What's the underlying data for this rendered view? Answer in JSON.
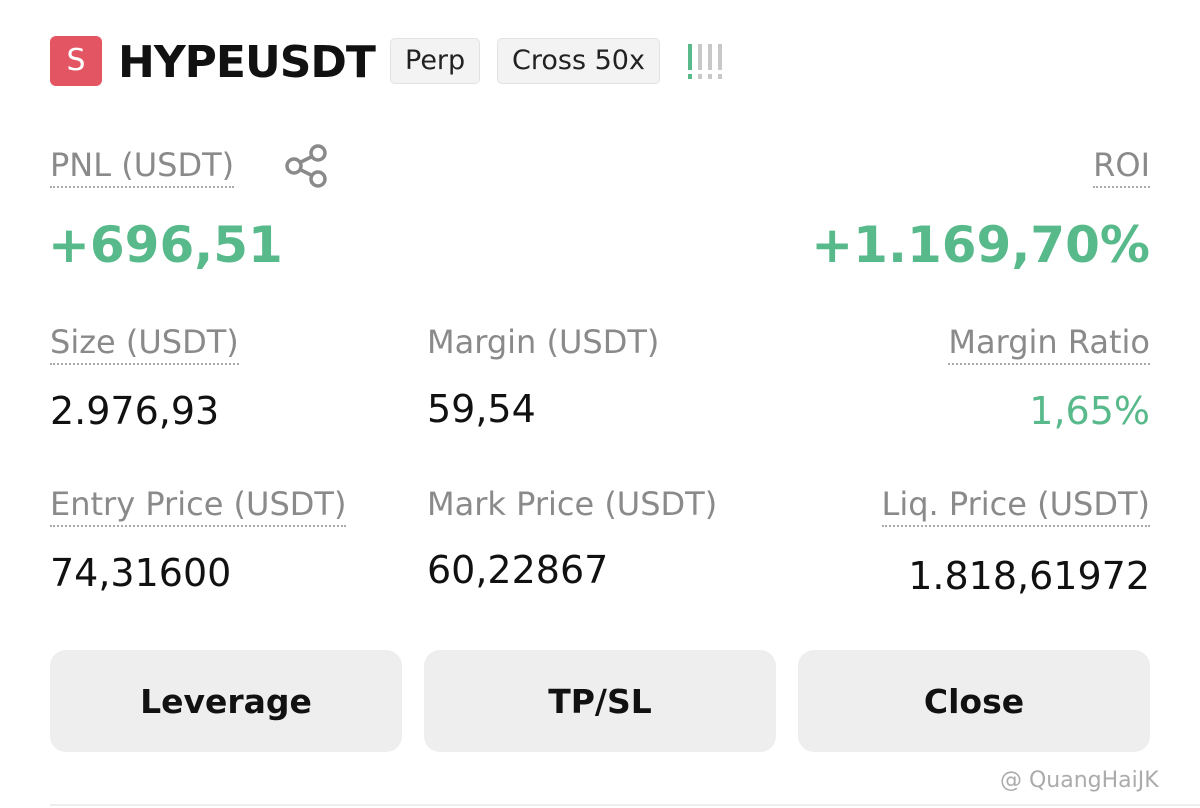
{
  "header": {
    "badge": "S",
    "symbol": "HYPEUSDT",
    "tags": [
      "Perp",
      "Cross 50x"
    ]
  },
  "pnl": {
    "label": "PNL (USDT)",
    "value": "+696,51"
  },
  "roi": {
    "label": "ROI",
    "value": "+1.169,70%"
  },
  "fields": [
    {
      "label": "Size (USDT)",
      "value": "2.976,93"
    },
    {
      "label": "Margin (USDT)",
      "value": "59,54"
    },
    {
      "label": "Margin Ratio",
      "value": "1,65%"
    },
    {
      "label": "Entry Price (USDT)",
      "value": "74,31600"
    },
    {
      "label": "Mark Price (USDT)",
      "value": "60,22867"
    },
    {
      "label": "Liq. Price (USDT)",
      "value": "1.818,61972"
    }
  ],
  "buttons": [
    "Leverage",
    "TP/SL",
    "Close"
  ],
  "watermark": "@ QuangHaiJK"
}
